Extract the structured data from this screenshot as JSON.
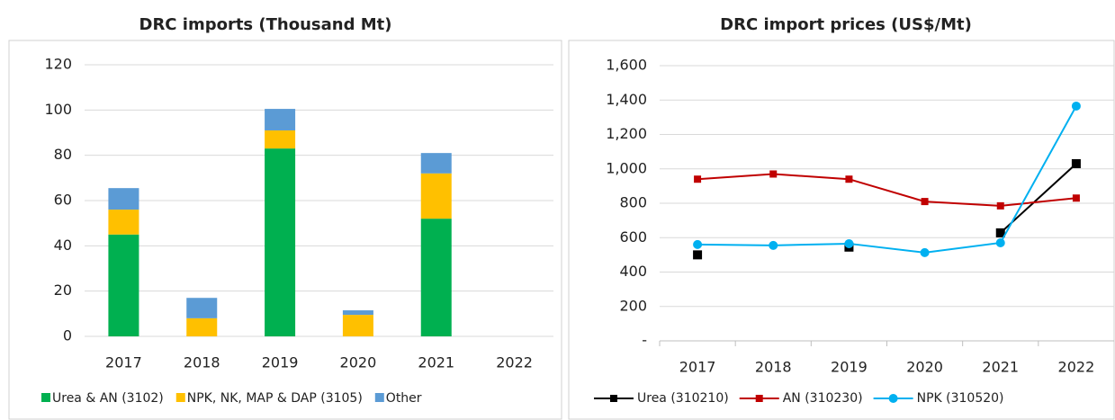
{
  "chart_data": [
    {
      "type": "stacked_bar",
      "title": "DRC imports (Thousand Mt)",
      "categories": [
        "2017",
        "2018",
        "2019",
        "2020",
        "2021",
        "2022"
      ],
      "series": [
        {
          "name": "Urea  & AN (3102)",
          "color": "#00b050",
          "values": [
            45,
            0,
            83,
            0,
            52,
            0
          ]
        },
        {
          "name": "NPK, NK, MAP & DAP (3105)",
          "color": "#ffc000",
          "values": [
            11,
            8,
            8,
            9.5,
            20,
            0
          ]
        },
        {
          "name": "Other",
          "color": "#5b9bd5",
          "values": [
            9.5,
            9,
            9.5,
            2,
            9,
            0
          ]
        }
      ],
      "ylim": [
        0,
        120
      ],
      "yticks": [
        0,
        20,
        40,
        60,
        80,
        100,
        120
      ],
      "grid": true
    },
    {
      "type": "line",
      "title": "DRC import prices (US$/Mt)",
      "categories": [
        "2017",
        "2018",
        "2019",
        "2020",
        "2021",
        "2022"
      ],
      "series": [
        {
          "name": "Urea (310210)",
          "color": "#000000",
          "values": [
            500,
            null,
            545,
            null,
            628,
            1030
          ]
        },
        {
          "name": "AN (310230)",
          "color": "#c00000",
          "values": [
            940,
            970,
            940,
            810,
            785,
            830
          ]
        },
        {
          "name": "NPK (310520)",
          "color": "#00b0f0",
          "values": [
            560,
            555,
            565,
            513,
            570,
            1365
          ]
        }
      ],
      "ylim": [
        0,
        1600
      ],
      "yticks": [
        {
          "value": 0,
          "label": "-"
        },
        200,
        400,
        600,
        800,
        {
          "value": 1000,
          "label": "1,000"
        },
        {
          "value": 1200,
          "label": "1,200"
        },
        {
          "value": 1400,
          "label": "1,400"
        },
        {
          "value": 1600,
          "label": "1,600"
        }
      ],
      "grid": true
    }
  ]
}
